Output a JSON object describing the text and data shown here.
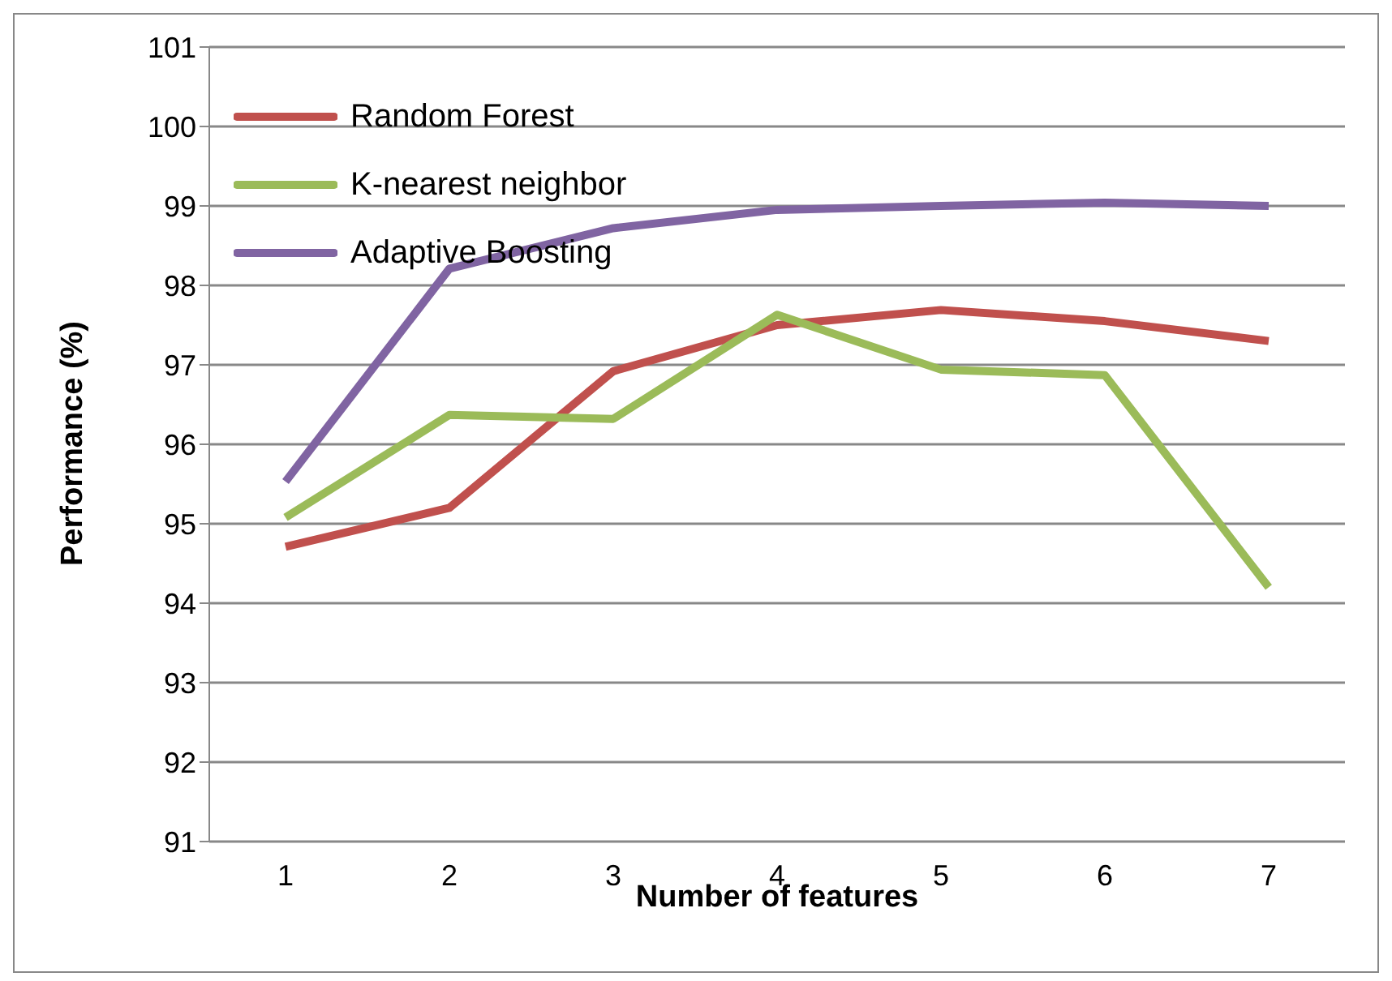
{
  "chart_data": {
    "type": "line",
    "xlabel": "Number of features",
    "ylabel": "Performance (%)",
    "categories": [
      "1",
      "2",
      "3",
      "4",
      "5",
      "6",
      "7"
    ],
    "series": [
      {
        "name": "Random Forest",
        "color": "#c0504d",
        "values": [
          94.71,
          95.2,
          96.92,
          97.5,
          97.69,
          97.55,
          97.3
        ]
      },
      {
        "name": "K-nearest neighbor",
        "color": "#9bbb59",
        "values": [
          95.08,
          96.37,
          96.32,
          97.63,
          96.94,
          96.87,
          94.2
        ]
      },
      {
        "name": "Adaptive Boosting",
        "color": "#8064a2",
        "values": [
          95.53,
          98.21,
          98.72,
          98.95,
          99.0,
          99.04,
          99.0
        ]
      }
    ],
    "ylim": [
      91,
      101
    ],
    "yticks": [
      91,
      92,
      93,
      94,
      95,
      96,
      97,
      98,
      99,
      100,
      101
    ],
    "grid": "y",
    "legend": "top left",
    "marker": "none",
    "line_style": "solid"
  }
}
